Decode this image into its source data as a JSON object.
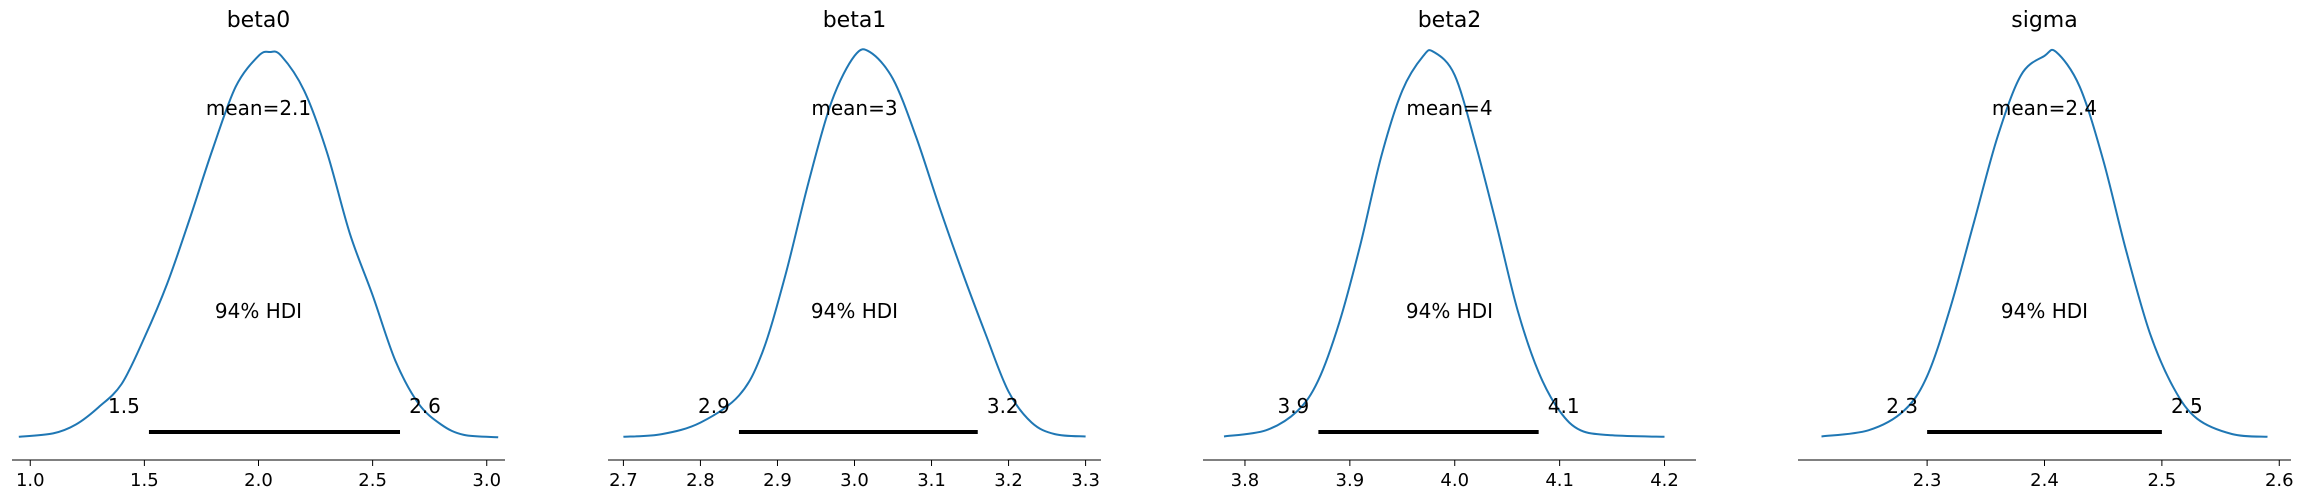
{
  "chart_data": [
    {
      "type": "line",
      "title": "beta0",
      "xlim": [
        0.92,
        3.08
      ],
      "xticks": [
        1.0,
        1.5,
        2.0,
        2.5,
        3.0
      ],
      "xtick_labels": [
        "1.0",
        "1.5",
        "2.0",
        "2.5",
        "3.0"
      ],
      "curve_color": "#1f77b4",
      "series": [
        {
          "x": [
            0.95,
            1.1,
            1.2,
            1.3,
            1.4,
            1.5,
            1.6,
            1.7,
            1.8,
            1.9,
            2.0,
            2.05,
            2.1,
            2.2,
            2.3,
            2.4,
            2.5,
            2.6,
            2.7,
            2.8,
            2.9,
            3.05
          ],
          "y": [
            0.003,
            0.012,
            0.035,
            0.08,
            0.14,
            0.26,
            0.4,
            0.57,
            0.75,
            0.91,
            0.99,
            1.0,
            0.99,
            0.9,
            0.74,
            0.53,
            0.37,
            0.2,
            0.09,
            0.035,
            0.008,
            0.002
          ]
        }
      ],
      "mean_label": "mean=2.1",
      "hdi_label": "94% HDI",
      "hdi": [
        1.52,
        2.62
      ],
      "hdi_low_label": "1.5",
      "hdi_high_label": "2.6"
    },
    {
      "type": "line",
      "title": "beta1",
      "xlim": [
        2.68,
        3.32
      ],
      "xticks": [
        2.7,
        2.8,
        2.9,
        3.0,
        3.1,
        3.2,
        3.3
      ],
      "xtick_labels": [
        "2.7",
        "2.8",
        "2.9",
        "3.0",
        "3.1",
        "3.2",
        "3.3"
      ],
      "curve_color": "#1f77b4",
      "series": [
        {
          "x": [
            2.7,
            2.75,
            2.8,
            2.85,
            2.88,
            2.91,
            2.94,
            2.97,
            3.0,
            3.02,
            3.05,
            3.08,
            3.11,
            3.14,
            3.17,
            3.2,
            3.23,
            3.26,
            3.3
          ],
          "y": [
            0.003,
            0.01,
            0.04,
            0.11,
            0.22,
            0.42,
            0.66,
            0.87,
            0.99,
            1.0,
            0.93,
            0.78,
            0.6,
            0.43,
            0.27,
            0.12,
            0.04,
            0.01,
            0.004
          ]
        }
      ],
      "mean_label": "mean=3",
      "hdi_label": "94% HDI",
      "hdi": [
        2.85,
        3.16
      ],
      "hdi_low_label": "2.9",
      "hdi_high_label": "3.2"
    },
    {
      "type": "line",
      "title": "beta2",
      "xlim": [
        3.76,
        4.23
      ],
      "xticks": [
        3.8,
        3.9,
        4.0,
        4.1,
        4.2
      ],
      "xtick_labels": [
        "3.8",
        "3.9",
        "4.0",
        "4.1",
        "4.2"
      ],
      "curve_color": "#1f77b4",
      "series": [
        {
          "x": [
            3.78,
            3.82,
            3.85,
            3.87,
            3.89,
            3.91,
            3.93,
            3.95,
            3.97,
            3.98,
            4.0,
            4.02,
            4.04,
            4.06,
            4.08,
            4.1,
            4.12,
            4.15,
            4.2
          ],
          "y": [
            0.004,
            0.02,
            0.07,
            0.15,
            0.3,
            0.5,
            0.73,
            0.9,
            0.99,
            1.0,
            0.94,
            0.76,
            0.55,
            0.33,
            0.17,
            0.07,
            0.02,
            0.007,
            0.003
          ]
        }
      ],
      "mean_label": "mean=4",
      "hdi_label": "94% HDI",
      "hdi": [
        3.87,
        4.08
      ],
      "hdi_low_label": "3.9",
      "hdi_high_label": "4.1"
    },
    {
      "type": "line",
      "title": "sigma",
      "xlim": [
        2.19,
        2.61
      ],
      "xticks": [
        2.3,
        2.4,
        2.5,
        2.6
      ],
      "xtick_labels": [
        "2.3",
        "2.4",
        "2.5",
        "2.6"
      ],
      "curve_color": "#1f77b4",
      "series": [
        {
          "x": [
            2.21,
            2.25,
            2.28,
            2.3,
            2.32,
            2.34,
            2.36,
            2.38,
            2.4,
            2.41,
            2.43,
            2.45,
            2.47,
            2.49,
            2.51,
            2.53,
            2.56,
            2.59
          ],
          "y": [
            0.004,
            0.02,
            0.07,
            0.16,
            0.34,
            0.56,
            0.78,
            0.94,
            0.99,
            1.0,
            0.91,
            0.72,
            0.48,
            0.27,
            0.13,
            0.05,
            0.01,
            0.003
          ]
        }
      ],
      "mean_label": "mean=2.4",
      "hdi_label": "94% HDI",
      "hdi": [
        2.3,
        2.5
      ],
      "hdi_low_label": "2.3",
      "hdi_high_label": "2.5"
    }
  ]
}
